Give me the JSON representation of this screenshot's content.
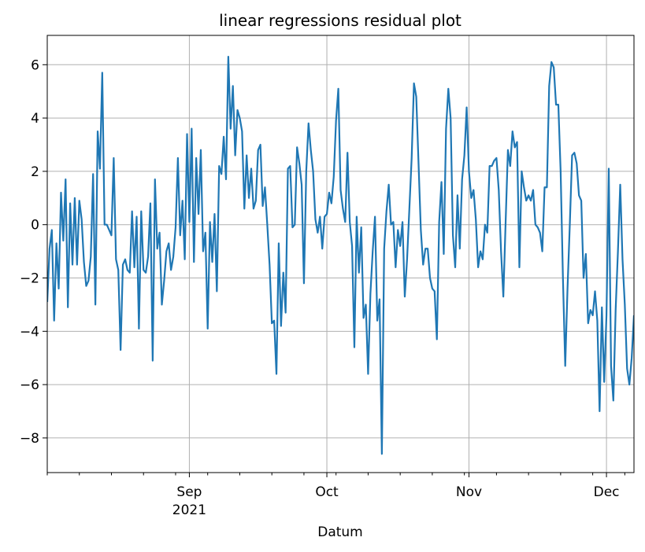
{
  "chart_data": {
    "type": "line",
    "title": "linear regressions residual plot",
    "xlabel": "Datum",
    "ylabel": "",
    "x_start": "2021-08-01",
    "x_end": "2021-12-07",
    "xlim": [
      "2021-08-01",
      "2021-12-07"
    ],
    "ylim": [
      -9.3,
      7.1
    ],
    "y_ticks": [
      6,
      4,
      2,
      0,
      -2,
      -4,
      -6,
      -8
    ],
    "y_tick_labels": [
      "6",
      "4",
      "2",
      "0",
      "−2",
      "−4",
      "−6",
      "−8"
    ],
    "x_major_ticks": [
      {
        "date": "2021-09-01",
        "label": "Sep",
        "sublabel": "2021"
      },
      {
        "date": "2021-10-01",
        "label": "Oct",
        "sublabel": ""
      },
      {
        "date": "2021-11-01",
        "label": "Nov",
        "sublabel": ""
      },
      {
        "date": "2021-12-01",
        "label": "Dec",
        "sublabel": ""
      }
    ],
    "grid": true,
    "series": [
      {
        "color": "#1f77b4",
        "points": [
          [
            "2021-08-01",
            -2.9
          ],
          [
            "2021-08-01T12:00",
            -0.9
          ],
          [
            "2021-08-02",
            -0.2
          ],
          [
            "2021-08-02T12:00",
            -3.6
          ],
          [
            "2021-08-03",
            -0.7
          ],
          [
            "2021-08-03T12:00",
            -2.4
          ],
          [
            "2021-08-04",
            1.2
          ],
          [
            "2021-08-04T12:00",
            -0.6
          ],
          [
            "2021-08-05",
            1.7
          ],
          [
            "2021-08-05T12:00",
            -3.1
          ],
          [
            "2021-08-06",
            0.8
          ],
          [
            "2021-08-06T12:00",
            -1.5
          ],
          [
            "2021-08-07",
            1.0
          ],
          [
            "2021-08-07T12:00",
            -1.5
          ],
          [
            "2021-08-08",
            0.9
          ],
          [
            "2021-08-08T12:00",
            0.2
          ],
          [
            "2021-08-09",
            -1.4
          ],
          [
            "2021-08-09T12:00",
            -2.3
          ],
          [
            "2021-08-10",
            -2.1
          ],
          [
            "2021-08-10T12:00",
            -1.2
          ],
          [
            "2021-08-11",
            1.9
          ],
          [
            "2021-08-11T12:00",
            -3.0
          ],
          [
            "2021-08-12",
            3.5
          ],
          [
            "2021-08-12T12:00",
            2.1
          ],
          [
            "2021-08-13",
            5.7
          ],
          [
            "2021-08-13T12:00",
            0.0
          ],
          [
            "2021-08-14",
            0.0
          ],
          [
            "2021-08-14T12:00",
            -0.2
          ],
          [
            "2021-08-15",
            -0.4
          ],
          [
            "2021-08-15T12:00",
            2.5
          ],
          [
            "2021-08-16",
            -1.3
          ],
          [
            "2021-08-16T12:00",
            -1.7
          ],
          [
            "2021-08-17",
            -4.7
          ],
          [
            "2021-08-17T12:00",
            -1.5
          ],
          [
            "2021-08-18",
            -1.3
          ],
          [
            "2021-08-18T12:00",
            -1.7
          ],
          [
            "2021-08-19",
            -1.8
          ],
          [
            "2021-08-19T12:00",
            0.5
          ],
          [
            "2021-08-20",
            -1.6
          ],
          [
            "2021-08-20T12:00",
            0.3
          ],
          [
            "2021-08-21",
            -3.9
          ],
          [
            "2021-08-21T12:00",
            0.5
          ],
          [
            "2021-08-22",
            -1.7
          ],
          [
            "2021-08-22T12:00",
            -1.8
          ],
          [
            "2021-08-23",
            -1.2
          ],
          [
            "2021-08-23T12:00",
            0.8
          ],
          [
            "2021-08-24",
            -5.1
          ],
          [
            "2021-08-24T12:00",
            1.7
          ],
          [
            "2021-08-25",
            -0.9
          ],
          [
            "2021-08-25T12:00",
            -0.3
          ],
          [
            "2021-08-26",
            -3.0
          ],
          [
            "2021-08-26T12:00",
            -2.1
          ],
          [
            "2021-08-27",
            -1.0
          ],
          [
            "2021-08-27T12:00",
            -0.7
          ],
          [
            "2021-08-28",
            -1.7
          ],
          [
            "2021-08-28T12:00",
            -1.2
          ],
          [
            "2021-08-29",
            -0.1
          ],
          [
            "2021-08-29T12:00",
            2.5
          ],
          [
            "2021-08-30",
            -0.4
          ],
          [
            "2021-08-30T12:00",
            0.9
          ],
          [
            "2021-08-31",
            -1.3
          ],
          [
            "2021-08-31T12:00",
            3.4
          ],
          [
            "2021-09-01",
            0.1
          ],
          [
            "2021-09-01T12:00",
            3.6
          ],
          [
            "2021-09-02",
            -1.4
          ],
          [
            "2021-09-02T12:00",
            2.5
          ],
          [
            "2021-09-03",
            0.4
          ],
          [
            "2021-09-03T12:00",
            2.8
          ],
          [
            "2021-09-04",
            -1.0
          ],
          [
            "2021-09-04T12:00",
            -0.3
          ],
          [
            "2021-09-05",
            -3.9
          ],
          [
            "2021-09-05T12:00",
            0.1
          ],
          [
            "2021-09-06",
            -1.4
          ],
          [
            "2021-09-06T12:00",
            0.4
          ],
          [
            "2021-09-07",
            -2.5
          ],
          [
            "2021-09-07T12:00",
            2.2
          ],
          [
            "2021-09-08",
            1.9
          ],
          [
            "2021-09-08T12:00",
            3.3
          ],
          [
            "2021-09-09",
            1.7
          ],
          [
            "2021-09-09T12:00",
            6.3
          ],
          [
            "2021-09-10",
            3.6
          ],
          [
            "2021-09-10T12:00",
            5.2
          ],
          [
            "2021-09-11",
            2.6
          ],
          [
            "2021-09-11T12:00",
            4.3
          ],
          [
            "2021-09-12",
            4.0
          ],
          [
            "2021-09-12T12:00",
            3.5
          ],
          [
            "2021-09-13",
            0.6
          ],
          [
            "2021-09-13T12:00",
            2.6
          ],
          [
            "2021-09-14",
            1.0
          ],
          [
            "2021-09-14T12:00",
            2.1
          ],
          [
            "2021-09-15",
            0.6
          ],
          [
            "2021-09-15T12:00",
            0.9
          ],
          [
            "2021-09-16",
            2.8
          ],
          [
            "2021-09-16T12:00",
            3.0
          ],
          [
            "2021-09-17",
            0.7
          ],
          [
            "2021-09-17T12:00",
            1.4
          ],
          [
            "2021-09-18",
            0.0
          ],
          [
            "2021-09-18T12:00",
            -1.5
          ],
          [
            "2021-09-19",
            -3.7
          ],
          [
            "2021-09-19T12:00",
            -3.6
          ],
          [
            "2021-09-20",
            -5.6
          ],
          [
            "2021-09-20T12:00",
            -0.7
          ],
          [
            "2021-09-21",
            -3.8
          ],
          [
            "2021-09-21T12:00",
            -1.8
          ],
          [
            "2021-09-22",
            -3.3
          ],
          [
            "2021-09-22T12:00",
            2.1
          ],
          [
            "2021-09-23",
            2.2
          ],
          [
            "2021-09-23T12:00",
            -0.1
          ],
          [
            "2021-09-24",
            0.0
          ],
          [
            "2021-09-24T12:00",
            2.9
          ],
          [
            "2021-09-25",
            2.3
          ],
          [
            "2021-09-25T12:00",
            1.5
          ],
          [
            "2021-09-26",
            -2.2
          ],
          [
            "2021-09-26T12:00",
            2.0
          ],
          [
            "2021-09-27",
            3.8
          ],
          [
            "2021-09-27T12:00",
            2.8
          ],
          [
            "2021-09-28",
            2.0
          ],
          [
            "2021-09-28T12:00",
            0.2
          ],
          [
            "2021-09-29",
            -0.3
          ],
          [
            "2021-09-29T12:00",
            0.3
          ],
          [
            "2021-09-30",
            -0.9
          ],
          [
            "2021-09-30T12:00",
            0.3
          ],
          [
            "2021-10-01",
            0.4
          ],
          [
            "2021-10-01T12:00",
            1.2
          ],
          [
            "2021-10-02",
            0.8
          ],
          [
            "2021-10-02T12:00",
            1.8
          ],
          [
            "2021-10-03",
            3.9
          ],
          [
            "2021-10-03T12:00",
            5.1
          ],
          [
            "2021-10-04",
            1.3
          ],
          [
            "2021-10-04T12:00",
            0.6
          ],
          [
            "2021-10-05",
            0.1
          ],
          [
            "2021-10-05T12:00",
            2.7
          ],
          [
            "2021-10-06",
            0.1
          ],
          [
            "2021-10-06T12:00",
            -0.8
          ],
          [
            "2021-10-07",
            -4.6
          ],
          [
            "2021-10-07T12:00",
            0.3
          ],
          [
            "2021-10-08",
            -1.8
          ],
          [
            "2021-10-08T12:00",
            -0.1
          ],
          [
            "2021-10-09",
            -3.5
          ],
          [
            "2021-10-09T12:00",
            -3.0
          ],
          [
            "2021-10-10",
            -5.6
          ],
          [
            "2021-10-10T12:00",
            -2.6
          ],
          [
            "2021-10-11",
            -1.0
          ],
          [
            "2021-10-11T12:00",
            0.3
          ],
          [
            "2021-10-12",
            -3.6
          ],
          [
            "2021-10-12T12:00",
            -2.8
          ],
          [
            "2021-10-13",
            -8.6
          ],
          [
            "2021-10-13T12:00",
            -0.9
          ],
          [
            "2021-10-14",
            0.5
          ],
          [
            "2021-10-14T12:00",
            1.5
          ],
          [
            "2021-10-15",
            0.0
          ],
          [
            "2021-10-15T12:00",
            0.1
          ],
          [
            "2021-10-16",
            -1.6
          ],
          [
            "2021-10-16T12:00",
            -0.2
          ],
          [
            "2021-10-17",
            -0.8
          ],
          [
            "2021-10-17T12:00",
            0.1
          ],
          [
            "2021-10-18",
            -2.7
          ],
          [
            "2021-10-18T12:00",
            -1.3
          ],
          [
            "2021-10-19",
            0.6
          ],
          [
            "2021-10-19T12:00",
            2.5
          ],
          [
            "2021-10-20",
            5.3
          ],
          [
            "2021-10-20T12:00",
            4.8
          ],
          [
            "2021-10-21",
            2.3
          ],
          [
            "2021-10-21T12:00",
            -0.2
          ],
          [
            "2021-10-22",
            -1.5
          ],
          [
            "2021-10-22T12:00",
            -0.9
          ],
          [
            "2021-10-23",
            -0.9
          ],
          [
            "2021-10-23T12:00",
            -2.0
          ],
          [
            "2021-10-24",
            -2.4
          ],
          [
            "2021-10-24T12:00",
            -2.5
          ],
          [
            "2021-10-25",
            -4.3
          ],
          [
            "2021-10-25T12:00",
            0.1
          ],
          [
            "2021-10-26",
            1.6
          ],
          [
            "2021-10-26T12:00",
            -1.1
          ],
          [
            "2021-10-27",
            3.6
          ],
          [
            "2021-10-27T12:00",
            5.1
          ],
          [
            "2021-10-28",
            4.0
          ],
          [
            "2021-10-28T12:00",
            -0.4
          ],
          [
            "2021-10-29",
            -1.6
          ],
          [
            "2021-10-29T12:00",
            1.1
          ],
          [
            "2021-10-30",
            -0.9
          ],
          [
            "2021-10-30T12:00",
            1.7
          ],
          [
            "2021-10-31",
            2.6
          ],
          [
            "2021-10-31T12:00",
            4.4
          ],
          [
            "2021-11-01",
            2.0
          ],
          [
            "2021-11-01T12:00",
            1.0
          ],
          [
            "2021-11-02",
            1.3
          ],
          [
            "2021-11-02T12:00",
            0.2
          ],
          [
            "2021-11-03",
            -1.6
          ],
          [
            "2021-11-03T12:00",
            -1.0
          ],
          [
            "2021-11-04",
            -1.3
          ],
          [
            "2021-11-04T12:00",
            0.0
          ],
          [
            "2021-11-05",
            -0.3
          ],
          [
            "2021-11-05T12:00",
            2.2
          ],
          [
            "2021-11-06",
            2.2
          ],
          [
            "2021-11-06T12:00",
            2.4
          ],
          [
            "2021-11-07",
            2.5
          ],
          [
            "2021-11-07T12:00",
            1.3
          ],
          [
            "2021-11-08",
            -1.0
          ],
          [
            "2021-11-08T12:00",
            -2.7
          ],
          [
            "2021-11-09",
            0.1
          ],
          [
            "2021-11-09T12:00",
            2.8
          ],
          [
            "2021-11-10",
            2.2
          ],
          [
            "2021-11-10T12:00",
            3.5
          ],
          [
            "2021-11-11",
            2.9
          ],
          [
            "2021-11-11T12:00",
            3.1
          ],
          [
            "2021-11-12",
            -1.6
          ],
          [
            "2021-11-12T12:00",
            2.0
          ],
          [
            "2021-11-13",
            1.4
          ],
          [
            "2021-11-13T12:00",
            0.9
          ],
          [
            "2021-11-14",
            1.1
          ],
          [
            "2021-11-14T12:00",
            0.9
          ],
          [
            "2021-11-15",
            1.3
          ],
          [
            "2021-11-15T12:00",
            0.0
          ],
          [
            "2021-11-16",
            -0.1
          ],
          [
            "2021-11-16T12:00",
            -0.3
          ],
          [
            "2021-11-17",
            -1.0
          ],
          [
            "2021-11-17T12:00",
            1.4
          ],
          [
            "2021-11-18",
            1.4
          ],
          [
            "2021-11-18T12:00",
            5.2
          ],
          [
            "2021-11-19",
            6.1
          ],
          [
            "2021-11-19T12:00",
            5.9
          ],
          [
            "2021-11-20",
            4.5
          ],
          [
            "2021-11-20T12:00",
            4.5
          ],
          [
            "2021-11-21",
            2.0
          ],
          [
            "2021-11-21T12:00",
            -2.0
          ],
          [
            "2021-11-22",
            -5.3
          ],
          [
            "2021-11-22T12:00",
            -2.4
          ],
          [
            "2021-11-23",
            0.0
          ],
          [
            "2021-11-23T12:00",
            2.6
          ],
          [
            "2021-11-24",
            2.7
          ],
          [
            "2021-11-24T12:00",
            2.3
          ],
          [
            "2021-11-25",
            1.1
          ],
          [
            "2021-11-25T12:00",
            0.9
          ],
          [
            "2021-11-26",
            -2.0
          ],
          [
            "2021-11-26T12:00",
            -1.1
          ],
          [
            "2021-11-27",
            -3.7
          ],
          [
            "2021-11-27T12:00",
            -3.2
          ],
          [
            "2021-11-28",
            -3.4
          ],
          [
            "2021-11-28T12:00",
            -2.5
          ],
          [
            "2021-11-29",
            -3.6
          ],
          [
            "2021-11-29T12:00",
            -7.0
          ],
          [
            "2021-11-30",
            -3.1
          ],
          [
            "2021-11-30T12:00",
            -5.9
          ],
          [
            "2021-12-01",
            -3.4
          ],
          [
            "2021-12-01T12:00",
            2.1
          ],
          [
            "2021-12-02",
            -5.3
          ],
          [
            "2021-12-02T12:00",
            -6.6
          ],
          [
            "2021-12-03",
            -3.2
          ],
          [
            "2021-12-03T12:00",
            -1.0
          ],
          [
            "2021-12-04",
            1.5
          ],
          [
            "2021-12-04T12:00",
            -1.3
          ],
          [
            "2021-12-05",
            -3.0
          ],
          [
            "2021-12-05T12:00",
            -5.4
          ],
          [
            "2021-12-06",
            -6.0
          ],
          [
            "2021-12-06T12:00",
            -5.0
          ],
          [
            "2021-12-07",
            -3.4
          ]
        ]
      }
    ]
  }
}
